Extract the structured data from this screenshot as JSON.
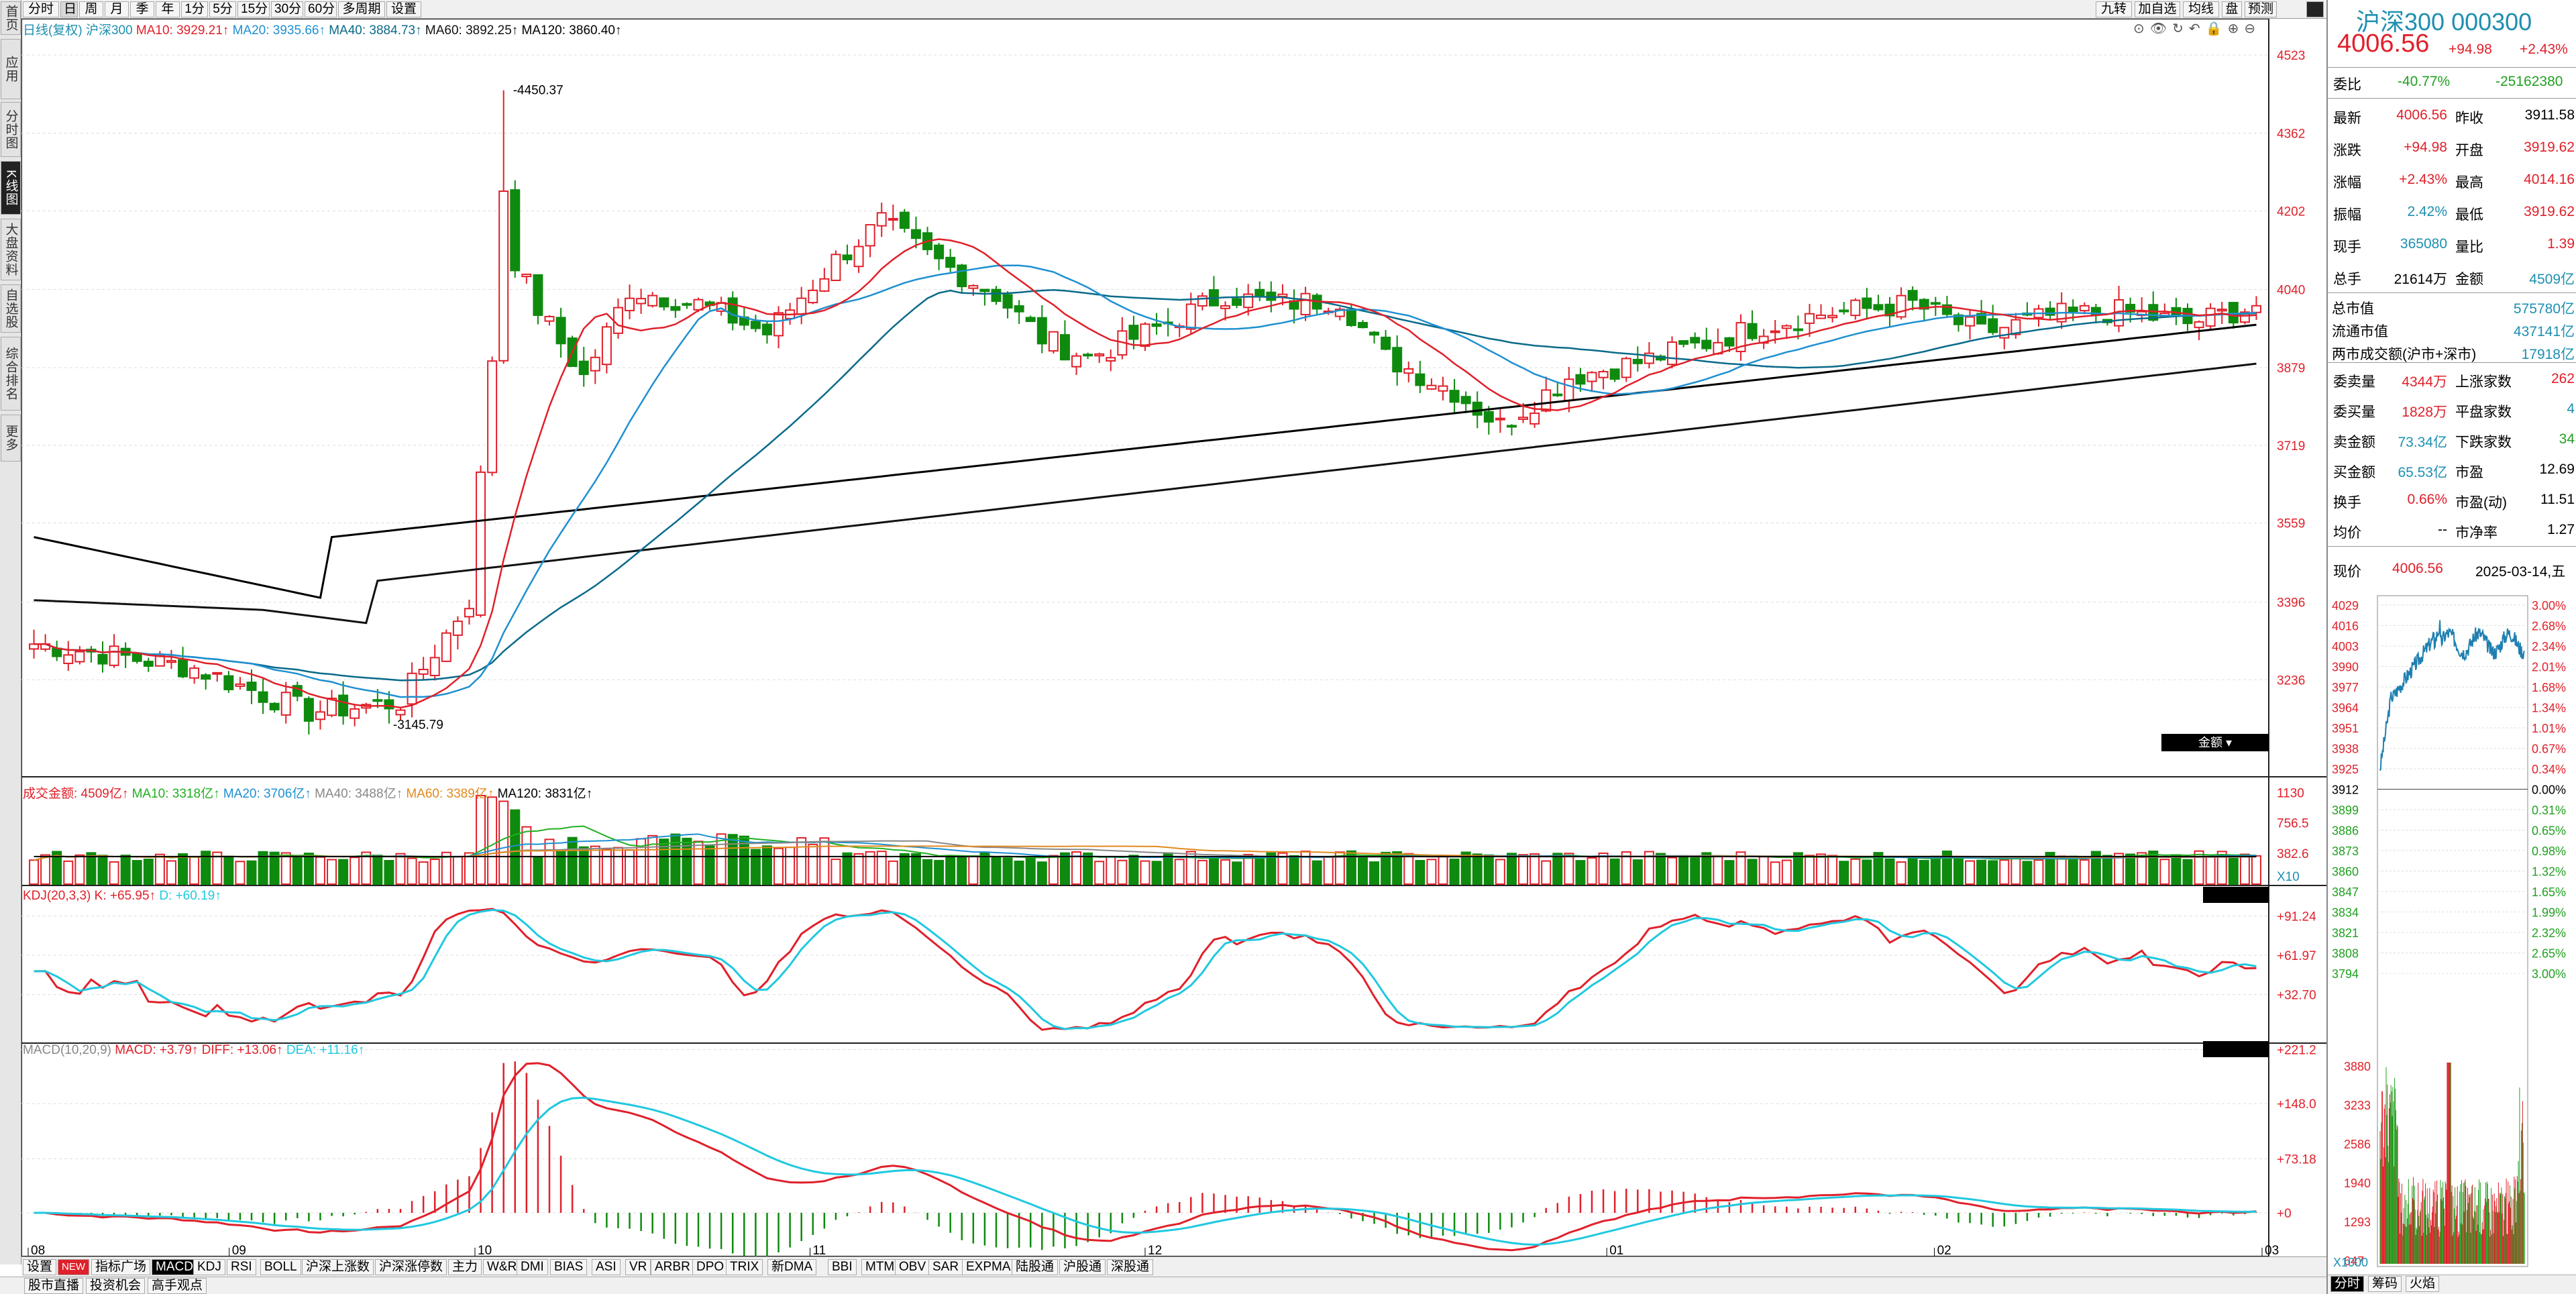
{
  "sidebar": [
    "首页",
    "应用",
    "分时图",
    "K线图",
    "大盘资料",
    "自选股",
    "综合排名",
    "更多"
  ],
  "periods": [
    "分时",
    "日",
    "周",
    "月",
    "季",
    "年",
    "1分",
    "5分",
    "15分",
    "30分",
    "60分",
    "多周期",
    "设置"
  ],
  "right_top_buttons": [
    "九转",
    "加自选",
    "均线",
    "盘",
    "预测"
  ],
  "main_legend": {
    "prefix": "日线(复权)",
    "name": "沪深300",
    "ma10": "MA10: 3929.21↑",
    "ma20": "MA20: 3935.66↑",
    "ma40": "MA40: 3884.73↑",
    "ma60": "MA60: 3892.25↑",
    "ma120": "MA120: 3860.40↑"
  },
  "price_axis": [
    "4523",
    "4362",
    "4202",
    "4040",
    "3879",
    "3719",
    "3559",
    "3396",
    "3236"
  ],
  "high_label": "4450.37",
  "low_label": "3145.79",
  "vol_legend": {
    "label": "成交金额: 4509亿↑",
    "ma10": "MA10: 3318亿↑",
    "ma20": "MA20: 3706亿↑",
    "ma40": "MA40: 3488亿↑",
    "ma60": "MA60: 3389亿↑",
    "ma120": "MA120: 3831亿↑",
    "button": "金额"
  },
  "vol_axis": [
    "1130",
    "756.5",
    "382.6",
    "X10"
  ],
  "kdj_legend": {
    "label": "KDJ(20,3,3) K: +65.95↑",
    "d": "D: +60.19↑"
  },
  "kdj_axis": [
    "+91.24",
    "+61.97",
    "+32.70"
  ],
  "macd_legend": {
    "label": "MACD(10,20,9)",
    "macd": "MACD: +3.79↑",
    "diff": "DIFF: +13.06↑",
    "dea": "DEA: +11.16↑"
  },
  "macd_axis": [
    "+221.2",
    "+148.0",
    "+73.18",
    "+0"
  ],
  "x_axis": [
    "08",
    "09",
    "10",
    "11",
    "12",
    "01",
    "02",
    "03"
  ],
  "indicator_tabs": [
    "设置",
    "NEW",
    "指标广场",
    "MACD",
    "KDJ",
    "RSI",
    "BOLL",
    "沪深上涨数",
    "沪深涨停数",
    "主力",
    "W&R",
    "DMI",
    "BIAS",
    "ASI",
    "VR",
    "ARBR",
    "DPO",
    "TRIX",
    "新DMA",
    "BBI",
    "MTM",
    "OBV",
    "SAR",
    "EXPMA",
    "陆股通",
    "沪股通",
    "深股通"
  ],
  "bottom_tabs": [
    "股市直播",
    "投资机会",
    "高手观点"
  ],
  "quote": {
    "title": "沪深300 000300",
    "price": "4006.56",
    "change": "+94.98",
    "pct": "+2.43%",
    "weibi_label": "委比",
    "weibi": "-40.77%",
    "weicha": "-25162380",
    "rows": [
      [
        "最新",
        "4006.56",
        "昨收",
        "3911.58"
      ],
      [
        "涨跌",
        "+94.98",
        "开盘",
        "3919.62"
      ],
      [
        "涨幅",
        "+2.43%",
        "最高",
        "4014.16"
      ],
      [
        "振幅",
        "2.42%",
        "最低",
        "3919.62"
      ],
      [
        "现手",
        "365080",
        "量比",
        "1.39"
      ],
      [
        "总手",
        "21614万",
        "金额",
        "4509亿"
      ]
    ],
    "market": [
      [
        "总市值",
        "575780亿"
      ],
      [
        "流通市值",
        "437141亿"
      ],
      [
        "两市成交额(沪市+深市)",
        "17918亿"
      ]
    ],
    "rows2": [
      [
        "委卖量",
        "4344万",
        "上涨家数",
        "262"
      ],
      [
        "委买量",
        "1828万",
        "平盘家数",
        "4"
      ],
      [
        "卖金额",
        "73.34亿",
        "下跌家数",
        "34"
      ],
      [
        "买金额",
        "65.53亿",
        "市盈",
        "12.69"
      ],
      [
        "换手",
        "0.66%",
        "市盈(动)",
        "11.51"
      ],
      [
        "均价",
        "--",
        "市净率",
        "1.27"
      ]
    ],
    "now_label": "现价",
    "now_price": "4006.56",
    "date": "2025-03-14,五",
    "mini_left": [
      "4029",
      "4016",
      "4003",
      "3990",
      "3977",
      "3964",
      "3951",
      "3938",
      "3925",
      "3912",
      "3899",
      "3886",
      "3873",
      "3860",
      "3847",
      "3834",
      "3821",
      "3808",
      "3794"
    ],
    "mini_right": [
      "3.00%",
      "2.68%",
      "2.34%",
      "2.01%",
      "1.68%",
      "1.34%",
      "1.01%",
      "0.67%",
      "0.34%",
      "0.00%",
      "0.31%",
      "0.65%",
      "0.98%",
      "1.32%",
      "1.65%",
      "1.99%",
      "2.32%",
      "2.65%",
      "3.00%"
    ],
    "mini_vol": [
      "3880",
      "3233",
      "2586",
      "1940",
      "1293",
      "647",
      "X1000"
    ],
    "tabs": [
      "分时",
      "筹码",
      "火焰"
    ]
  },
  "colors": {
    "up": "#e0202a",
    "down": "#0e8a0e",
    "ma10": "#e0202a",
    "ma20": "#1e90d0",
    "ma40": "#0a6a8a",
    "ma60": "#111",
    "ma120": "#000",
    "k": "#e0202a",
    "d": "#20c8e0"
  }
}
